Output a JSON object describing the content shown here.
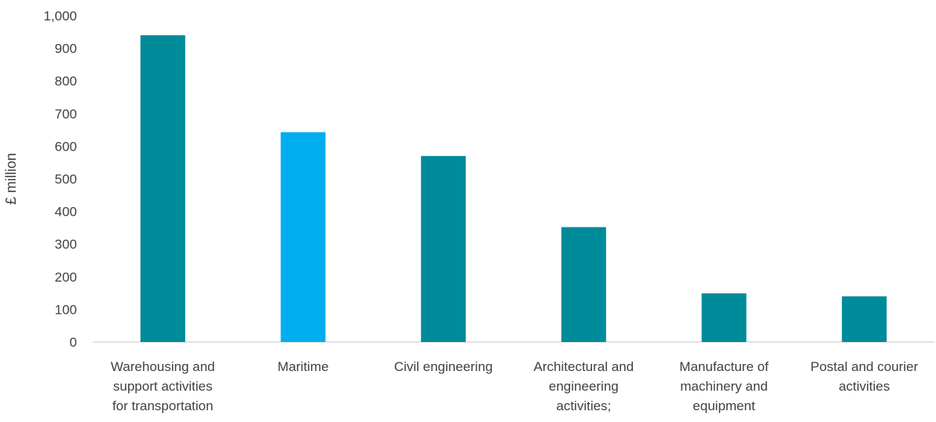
{
  "chart_data": {
    "type": "bar",
    "categories": [
      [
        "Warehousing and",
        "support activities",
        "for transportation"
      ],
      [
        "Maritime"
      ],
      [
        "Civil engineering"
      ],
      [
        "Architectural and",
        "engineering",
        "activities;"
      ],
      [
        "Manufacture of",
        "machinery and",
        "equipment"
      ],
      [
        "Postal and courier",
        "activities"
      ]
    ],
    "values": [
      940,
      643,
      570,
      352,
      149,
      140
    ],
    "bar_colors": [
      "#008b9b",
      "#00aeef",
      "#008b9b",
      "#008b9b",
      "#008b9b",
      "#008b9b"
    ],
    "ylabel": "£ million",
    "ylim": [
      0,
      1000
    ],
    "yticks": [
      0,
      100,
      200,
      300,
      400,
      500,
      600,
      700,
      800,
      900,
      1000
    ],
    "ytick_labels": [
      "0",
      "100",
      "200",
      "300",
      "400",
      "500",
      "600",
      "700",
      "800",
      "900",
      "1,000"
    ],
    "grid": false,
    "legend": "none"
  }
}
